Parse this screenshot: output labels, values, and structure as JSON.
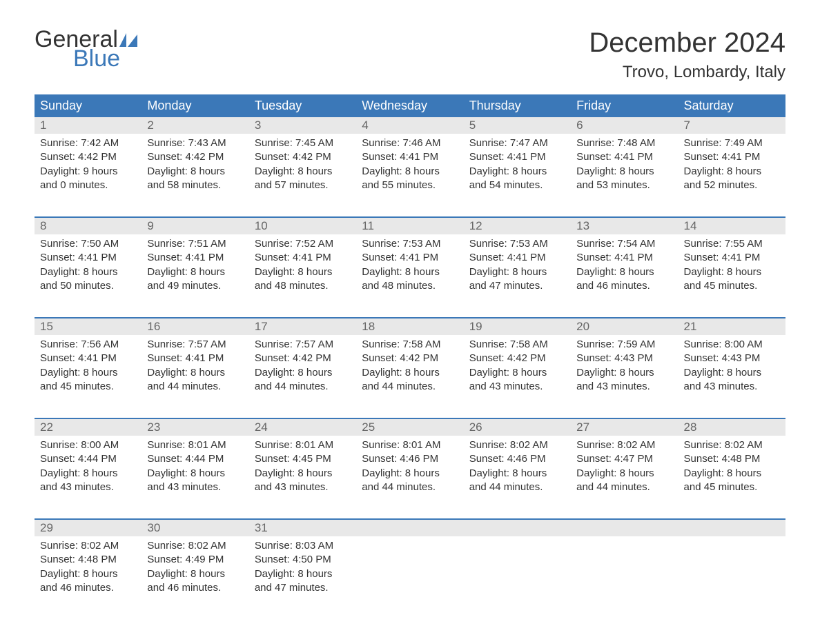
{
  "logo": {
    "text_top": "General",
    "text_bottom": "Blue",
    "sail_color": "#3b78b8",
    "text_color_top": "#333333",
    "text_color_bottom": "#3b78b8"
  },
  "header": {
    "month_title": "December 2024",
    "location": "Trovo, Lombardy, Italy"
  },
  "colors": {
    "header_bar_bg": "#3b78b8",
    "header_bar_text": "#ffffff",
    "day_number_bg": "#e8e8e8",
    "day_number_text": "#666666",
    "body_text": "#333333",
    "week_divider": "#3b78b8",
    "page_bg": "#ffffff"
  },
  "typography": {
    "month_title_fontsize": 40,
    "location_fontsize": 24,
    "weekday_fontsize": 18,
    "day_number_fontsize": 17,
    "cell_body_fontsize": 15,
    "logo_fontsize": 34,
    "font_family": "Arial"
  },
  "calendar": {
    "weekdays": [
      "Sunday",
      "Monday",
      "Tuesday",
      "Wednesday",
      "Thursday",
      "Friday",
      "Saturday"
    ],
    "weeks": [
      [
        {
          "day": "1",
          "sunrise": "Sunrise: 7:42 AM",
          "sunset": "Sunset: 4:42 PM",
          "daylight1": "Daylight: 9 hours",
          "daylight2": "and 0 minutes."
        },
        {
          "day": "2",
          "sunrise": "Sunrise: 7:43 AM",
          "sunset": "Sunset: 4:42 PM",
          "daylight1": "Daylight: 8 hours",
          "daylight2": "and 58 minutes."
        },
        {
          "day": "3",
          "sunrise": "Sunrise: 7:45 AM",
          "sunset": "Sunset: 4:42 PM",
          "daylight1": "Daylight: 8 hours",
          "daylight2": "and 57 minutes."
        },
        {
          "day": "4",
          "sunrise": "Sunrise: 7:46 AM",
          "sunset": "Sunset: 4:41 PM",
          "daylight1": "Daylight: 8 hours",
          "daylight2": "and 55 minutes."
        },
        {
          "day": "5",
          "sunrise": "Sunrise: 7:47 AM",
          "sunset": "Sunset: 4:41 PM",
          "daylight1": "Daylight: 8 hours",
          "daylight2": "and 54 minutes."
        },
        {
          "day": "6",
          "sunrise": "Sunrise: 7:48 AM",
          "sunset": "Sunset: 4:41 PM",
          "daylight1": "Daylight: 8 hours",
          "daylight2": "and 53 minutes."
        },
        {
          "day": "7",
          "sunrise": "Sunrise: 7:49 AM",
          "sunset": "Sunset: 4:41 PM",
          "daylight1": "Daylight: 8 hours",
          "daylight2": "and 52 minutes."
        }
      ],
      [
        {
          "day": "8",
          "sunrise": "Sunrise: 7:50 AM",
          "sunset": "Sunset: 4:41 PM",
          "daylight1": "Daylight: 8 hours",
          "daylight2": "and 50 minutes."
        },
        {
          "day": "9",
          "sunrise": "Sunrise: 7:51 AM",
          "sunset": "Sunset: 4:41 PM",
          "daylight1": "Daylight: 8 hours",
          "daylight2": "and 49 minutes."
        },
        {
          "day": "10",
          "sunrise": "Sunrise: 7:52 AM",
          "sunset": "Sunset: 4:41 PM",
          "daylight1": "Daylight: 8 hours",
          "daylight2": "and 48 minutes."
        },
        {
          "day": "11",
          "sunrise": "Sunrise: 7:53 AM",
          "sunset": "Sunset: 4:41 PM",
          "daylight1": "Daylight: 8 hours",
          "daylight2": "and 48 minutes."
        },
        {
          "day": "12",
          "sunrise": "Sunrise: 7:53 AM",
          "sunset": "Sunset: 4:41 PM",
          "daylight1": "Daylight: 8 hours",
          "daylight2": "and 47 minutes."
        },
        {
          "day": "13",
          "sunrise": "Sunrise: 7:54 AM",
          "sunset": "Sunset: 4:41 PM",
          "daylight1": "Daylight: 8 hours",
          "daylight2": "and 46 minutes."
        },
        {
          "day": "14",
          "sunrise": "Sunrise: 7:55 AM",
          "sunset": "Sunset: 4:41 PM",
          "daylight1": "Daylight: 8 hours",
          "daylight2": "and 45 minutes."
        }
      ],
      [
        {
          "day": "15",
          "sunrise": "Sunrise: 7:56 AM",
          "sunset": "Sunset: 4:41 PM",
          "daylight1": "Daylight: 8 hours",
          "daylight2": "and 45 minutes."
        },
        {
          "day": "16",
          "sunrise": "Sunrise: 7:57 AM",
          "sunset": "Sunset: 4:41 PM",
          "daylight1": "Daylight: 8 hours",
          "daylight2": "and 44 minutes."
        },
        {
          "day": "17",
          "sunrise": "Sunrise: 7:57 AM",
          "sunset": "Sunset: 4:42 PM",
          "daylight1": "Daylight: 8 hours",
          "daylight2": "and 44 minutes."
        },
        {
          "day": "18",
          "sunrise": "Sunrise: 7:58 AM",
          "sunset": "Sunset: 4:42 PM",
          "daylight1": "Daylight: 8 hours",
          "daylight2": "and 44 minutes."
        },
        {
          "day": "19",
          "sunrise": "Sunrise: 7:58 AM",
          "sunset": "Sunset: 4:42 PM",
          "daylight1": "Daylight: 8 hours",
          "daylight2": "and 43 minutes."
        },
        {
          "day": "20",
          "sunrise": "Sunrise: 7:59 AM",
          "sunset": "Sunset: 4:43 PM",
          "daylight1": "Daylight: 8 hours",
          "daylight2": "and 43 minutes."
        },
        {
          "day": "21",
          "sunrise": "Sunrise: 8:00 AM",
          "sunset": "Sunset: 4:43 PM",
          "daylight1": "Daylight: 8 hours",
          "daylight2": "and 43 minutes."
        }
      ],
      [
        {
          "day": "22",
          "sunrise": "Sunrise: 8:00 AM",
          "sunset": "Sunset: 4:44 PM",
          "daylight1": "Daylight: 8 hours",
          "daylight2": "and 43 minutes."
        },
        {
          "day": "23",
          "sunrise": "Sunrise: 8:01 AM",
          "sunset": "Sunset: 4:44 PM",
          "daylight1": "Daylight: 8 hours",
          "daylight2": "and 43 minutes."
        },
        {
          "day": "24",
          "sunrise": "Sunrise: 8:01 AM",
          "sunset": "Sunset: 4:45 PM",
          "daylight1": "Daylight: 8 hours",
          "daylight2": "and 43 minutes."
        },
        {
          "day": "25",
          "sunrise": "Sunrise: 8:01 AM",
          "sunset": "Sunset: 4:46 PM",
          "daylight1": "Daylight: 8 hours",
          "daylight2": "and 44 minutes."
        },
        {
          "day": "26",
          "sunrise": "Sunrise: 8:02 AM",
          "sunset": "Sunset: 4:46 PM",
          "daylight1": "Daylight: 8 hours",
          "daylight2": "and 44 minutes."
        },
        {
          "day": "27",
          "sunrise": "Sunrise: 8:02 AM",
          "sunset": "Sunset: 4:47 PM",
          "daylight1": "Daylight: 8 hours",
          "daylight2": "and 44 minutes."
        },
        {
          "day": "28",
          "sunrise": "Sunrise: 8:02 AM",
          "sunset": "Sunset: 4:48 PM",
          "daylight1": "Daylight: 8 hours",
          "daylight2": "and 45 minutes."
        }
      ],
      [
        {
          "day": "29",
          "sunrise": "Sunrise: 8:02 AM",
          "sunset": "Sunset: 4:48 PM",
          "daylight1": "Daylight: 8 hours",
          "daylight2": "and 46 minutes."
        },
        {
          "day": "30",
          "sunrise": "Sunrise: 8:02 AM",
          "sunset": "Sunset: 4:49 PM",
          "daylight1": "Daylight: 8 hours",
          "daylight2": "and 46 minutes."
        },
        {
          "day": "31",
          "sunrise": "Sunrise: 8:03 AM",
          "sunset": "Sunset: 4:50 PM",
          "daylight1": "Daylight: 8 hours",
          "daylight2": "and 47 minutes."
        },
        null,
        null,
        null,
        null
      ]
    ]
  }
}
